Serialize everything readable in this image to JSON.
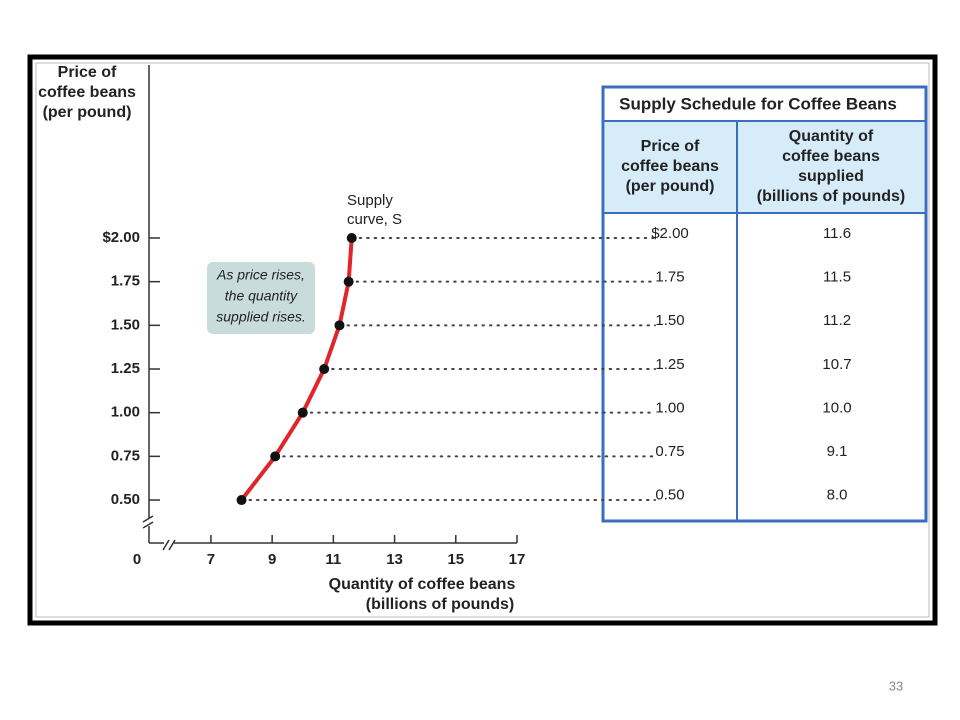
{
  "chart_data": {
    "type": "line",
    "y_label": [
      "Price of",
      "coffee beans",
      "(per pound)"
    ],
    "x_label": [
      "Quantity of coffee beans",
      "(billions of pounds)"
    ],
    "x_origin_label": "0",
    "curve_label": [
      "Supply",
      "curve, S"
    ],
    "callout": [
      "As price rises,",
      "the quantity",
      "supplied rises."
    ],
    "x": [
      8.0,
      9.1,
      10.0,
      10.7,
      11.2,
      11.5,
      11.6
    ],
    "values": [
      0.5,
      0.75,
      1,
      1.25,
      1.5,
      1.75,
      2
    ],
    "color": "#e0262b",
    "marker_color": "#111111",
    "xlim": [
      5,
      17
    ],
    "xticks": [
      7,
      9,
      11,
      13,
      15,
      17
    ],
    "ylim": [
      0.25,
      3
    ],
    "yticks": [
      {
        "value": 0.5,
        "label": "0.50"
      },
      0.75,
      {
        "value": 1,
        "label": "1.00"
      },
      1.25,
      {
        "value": 1.5,
        "label": "1.50"
      },
      1.75,
      {
        "value": 2,
        "label": "$2.00"
      }
    ]
  },
  "table": {
    "title": "Supply Schedule for Coffee Beans",
    "columns": [
      [
        "Price of",
        "coffee beans",
        "(per pound)"
      ],
      [
        "Quantity of",
        "coffee beans",
        "supplied",
        "(billions of pounds)"
      ]
    ],
    "rows": [
      [
        "$2.00",
        "11.6"
      ],
      [
        "1.75",
        "11.5"
      ],
      [
        "1.50",
        "11.2"
      ],
      [
        "1.25",
        "10.7"
      ],
      [
        "1.00",
        "10.0"
      ],
      [
        "0.75",
        "9.1"
      ],
      [
        "0.50",
        "8.0"
      ]
    ]
  },
  "page_number": "33"
}
